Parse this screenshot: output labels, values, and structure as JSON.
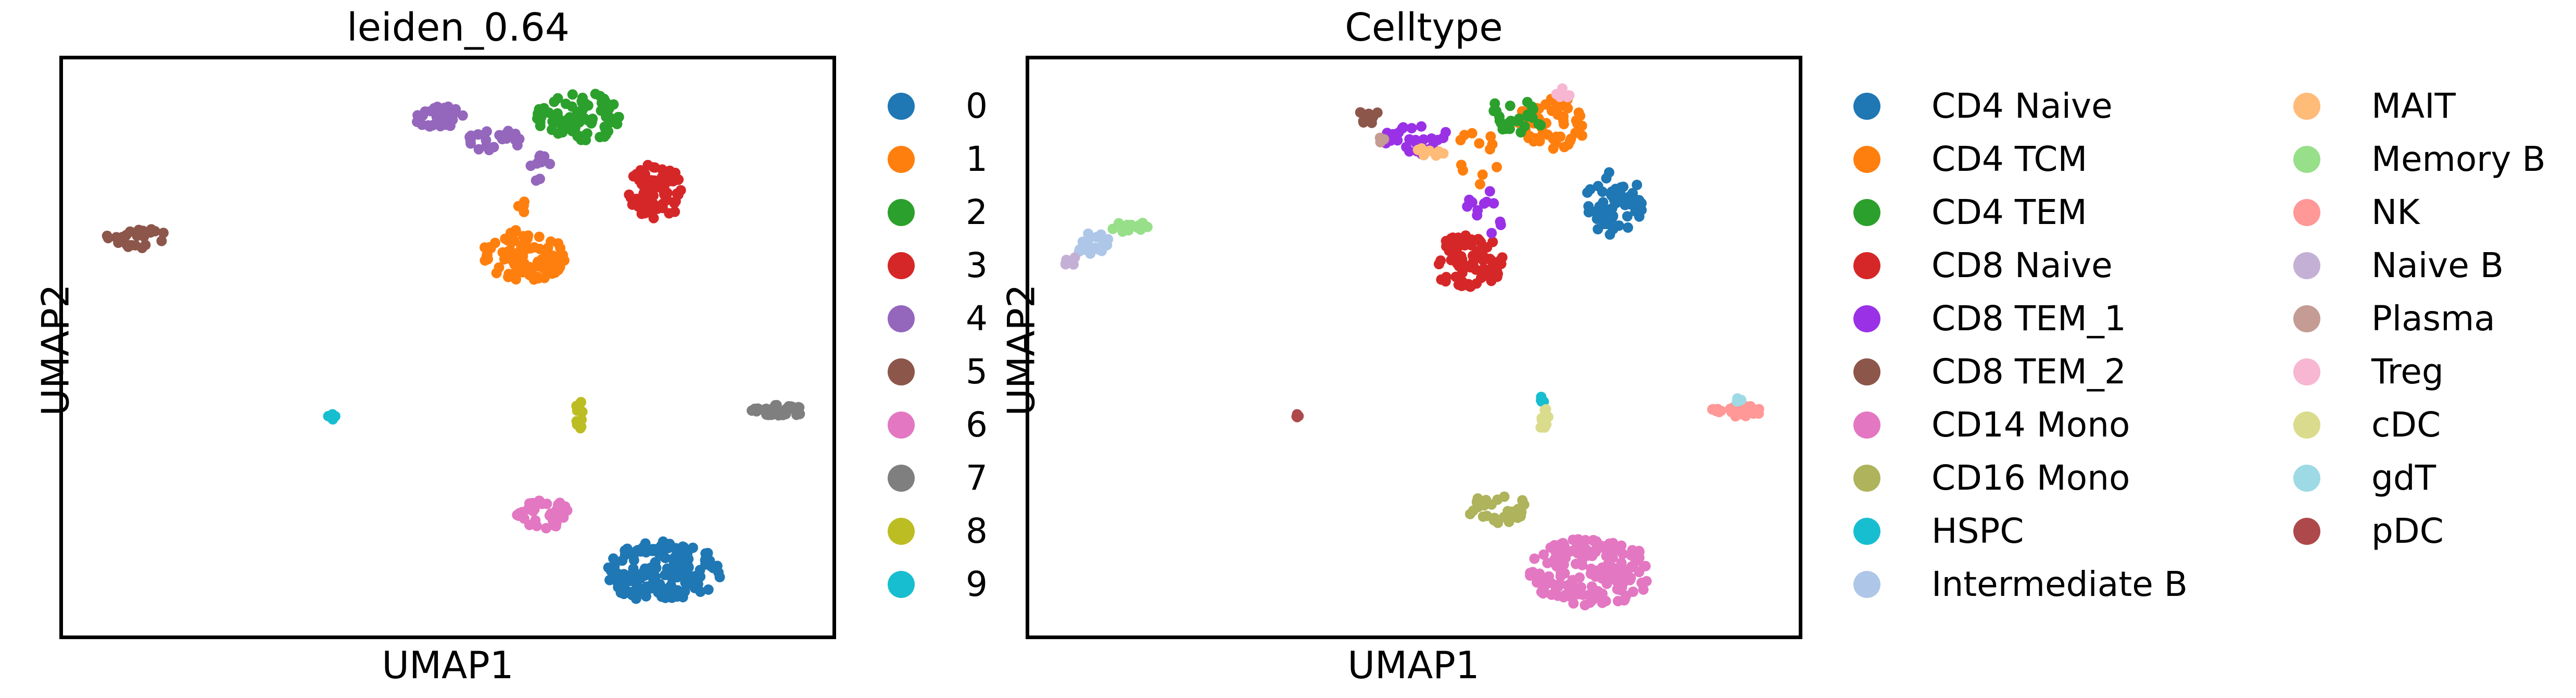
{
  "chart_data": [
    {
      "type": "scatter",
      "title": "leiden_0.64",
      "xlabel": "UMAP1",
      "ylabel": "UMAP2",
      "xlim": [
        0,
        10
      ],
      "ylim": [
        0,
        10
      ],
      "grid": false,
      "legend_position": "right",
      "series": [
        {
          "name": "0",
          "color": "#1f77b4",
          "clusters": [
            {
              "cx": 7.8,
              "cy": 1.1,
              "rx": 0.75,
              "ry": 0.55,
              "n": 160
            }
          ]
        },
        {
          "name": "1",
          "color": "#ff7f0e",
          "clusters": [
            {
              "cx": 6.0,
              "cy": 6.6,
              "rx": 0.55,
              "ry": 0.45,
              "n": 90
            },
            {
              "cx": 5.95,
              "cy": 7.5,
              "rx": 0.05,
              "ry": 0.35,
              "n": 6
            }
          ]
        },
        {
          "name": "2",
          "color": "#2ca02c",
          "clusters": [
            {
              "cx": 6.7,
              "cy": 9.0,
              "rx": 0.55,
              "ry": 0.45,
              "n": 80
            }
          ]
        },
        {
          "name": "3",
          "color": "#d62728",
          "clusters": [
            {
              "cx": 7.7,
              "cy": 7.7,
              "rx": 0.35,
              "ry": 0.5,
              "n": 70
            }
          ]
        },
        {
          "name": "4",
          "color": "#9467bd",
          "clusters": [
            {
              "cx": 4.9,
              "cy": 9.0,
              "rx": 0.35,
              "ry": 0.2,
              "n": 35
            },
            {
              "cx": 5.6,
              "cy": 8.6,
              "rx": 0.35,
              "ry": 0.2,
              "n": 25
            },
            {
              "cx": 6.2,
              "cy": 8.1,
              "rx": 0.15,
              "ry": 0.3,
              "n": 10
            }
          ]
        },
        {
          "name": "5",
          "color": "#8c564b",
          "clusters": [
            {
              "cx": 1.0,
              "cy": 6.9,
              "rx": 0.45,
              "ry": 0.18,
              "n": 28
            }
          ]
        },
        {
          "name": "6",
          "color": "#e377c2",
          "clusters": [
            {
              "cx": 6.25,
              "cy": 2.1,
              "rx": 0.35,
              "ry": 0.28,
              "n": 35
            }
          ]
        },
        {
          "name": "7",
          "color": "#7f7f7f",
          "clusters": [
            {
              "cx": 9.3,
              "cy": 3.9,
              "rx": 0.35,
              "ry": 0.1,
              "n": 35
            }
          ]
        },
        {
          "name": "8",
          "color": "#bcbd22",
          "clusters": [
            {
              "cx": 6.7,
              "cy": 3.8,
              "rx": 0.06,
              "ry": 0.3,
              "n": 12
            }
          ]
        },
        {
          "name": "9",
          "color": "#17becf",
          "clusters": [
            {
              "cx": 3.5,
              "cy": 3.8,
              "rx": 0.06,
              "ry": 0.05,
              "n": 4
            }
          ]
        }
      ]
    },
    {
      "type": "scatter",
      "title": "Celltype",
      "xlabel": "UMAP1",
      "ylabel": "UMAP2",
      "xlim": [
        0,
        10
      ],
      "ylim": [
        0,
        10
      ],
      "grid": false,
      "legend_position": "right",
      "series": [
        {
          "name": "CD4 Naive",
          "color": "#1f77b4",
          "clusters": [
            {
              "cx": 7.6,
              "cy": 7.5,
              "rx": 0.38,
              "ry": 0.55,
              "n": 65
            }
          ]
        },
        {
          "name": "CD4 TCM",
          "color": "#ff7f0e",
          "clusters": [
            {
              "cx": 6.8,
              "cy": 8.9,
              "rx": 0.45,
              "ry": 0.45,
              "n": 60
            },
            {
              "cx": 5.8,
              "cy": 8.3,
              "rx": 0.3,
              "ry": 0.5,
              "n": 12
            }
          ]
        },
        {
          "name": "CD4 TEM",
          "color": "#2ca02c",
          "clusters": [
            {
              "cx": 6.3,
              "cy": 9.0,
              "rx": 0.4,
              "ry": 0.3,
              "n": 25
            }
          ]
        },
        {
          "name": "CD8 Naive",
          "color": "#d62728",
          "clusters": [
            {
              "cx": 5.7,
              "cy": 6.5,
              "rx": 0.5,
              "ry": 0.45,
              "n": 75
            }
          ]
        },
        {
          "name": "CD8 TEM_1",
          "color": "#9a31e6",
          "clusters": [
            {
              "cx": 5.0,
              "cy": 8.6,
              "rx": 0.5,
              "ry": 0.25,
              "n": 28
            },
            {
              "cx": 5.9,
              "cy": 7.3,
              "rx": 0.25,
              "ry": 0.5,
              "n": 12
            }
          ]
        },
        {
          "name": "CD8 TEM_2",
          "color": "#8c564b",
          "clusters": [
            {
              "cx": 4.4,
              "cy": 9.0,
              "rx": 0.18,
              "ry": 0.12,
              "n": 12
            }
          ]
        },
        {
          "name": "CD14 Mono",
          "color": "#e377c2",
          "clusters": [
            {
              "cx": 7.3,
              "cy": 1.1,
              "rx": 0.8,
              "ry": 0.6,
              "n": 170
            }
          ]
        },
        {
          "name": "CD16 Mono",
          "color": "#aeb35c",
          "clusters": [
            {
              "cx": 6.1,
              "cy": 2.2,
              "rx": 0.4,
              "ry": 0.25,
              "n": 35
            }
          ]
        },
        {
          "name": "HSPC",
          "color": "#17becf",
          "clusters": [
            {
              "cx": 6.65,
              "cy": 4.1,
              "rx": 0.05,
              "ry": 0.06,
              "n": 4
            }
          ]
        },
        {
          "name": "Intermediate B",
          "color": "#aec7e8",
          "clusters": [
            {
              "cx": 0.8,
              "cy": 6.8,
              "rx": 0.3,
              "ry": 0.18,
              "n": 18
            }
          ]
        },
        {
          "name": "MAIT",
          "color": "#ffbb78",
          "clusters": [
            {
              "cx": 5.2,
              "cy": 8.4,
              "rx": 0.2,
              "ry": 0.1,
              "n": 8
            }
          ]
        },
        {
          "name": "Memory B",
          "color": "#98df8a",
          "clusters": [
            {
              "cx": 1.3,
              "cy": 7.1,
              "rx": 0.25,
              "ry": 0.1,
              "n": 12
            }
          ]
        },
        {
          "name": "NK",
          "color": "#ff9896",
          "clusters": [
            {
              "cx": 9.2,
              "cy": 3.9,
              "rx": 0.35,
              "ry": 0.1,
              "n": 35
            }
          ]
        },
        {
          "name": "Naive B",
          "color": "#c5b0d5",
          "clusters": [
            {
              "cx": 0.55,
              "cy": 6.5,
              "rx": 0.12,
              "ry": 0.1,
              "n": 6
            }
          ]
        },
        {
          "name": "Plasma",
          "color": "#c49c94",
          "clusters": [
            {
              "cx": 4.6,
              "cy": 8.6,
              "rx": 0.1,
              "ry": 0.08,
              "n": 4
            }
          ]
        },
        {
          "name": "Treg",
          "color": "#f7b6d2",
          "clusters": [
            {
              "cx": 6.9,
              "cy": 9.4,
              "rx": 0.15,
              "ry": 0.1,
              "n": 5
            }
          ]
        },
        {
          "name": "cDC",
          "color": "#dbdb8d",
          "clusters": [
            {
              "cx": 6.7,
              "cy": 3.7,
              "rx": 0.06,
              "ry": 0.25,
              "n": 10
            }
          ]
        },
        {
          "name": "gdT",
          "color": "#9edae5",
          "clusters": [
            {
              "cx": 9.2,
              "cy": 4.1,
              "rx": 0.1,
              "ry": 0.05,
              "n": 4
            }
          ]
        },
        {
          "name": "pDC",
          "color": "#ad494a",
          "clusters": [
            {
              "cx": 3.5,
              "cy": 3.8,
              "rx": 0.06,
              "ry": 0.05,
              "n": 4
            }
          ]
        }
      ]
    }
  ]
}
